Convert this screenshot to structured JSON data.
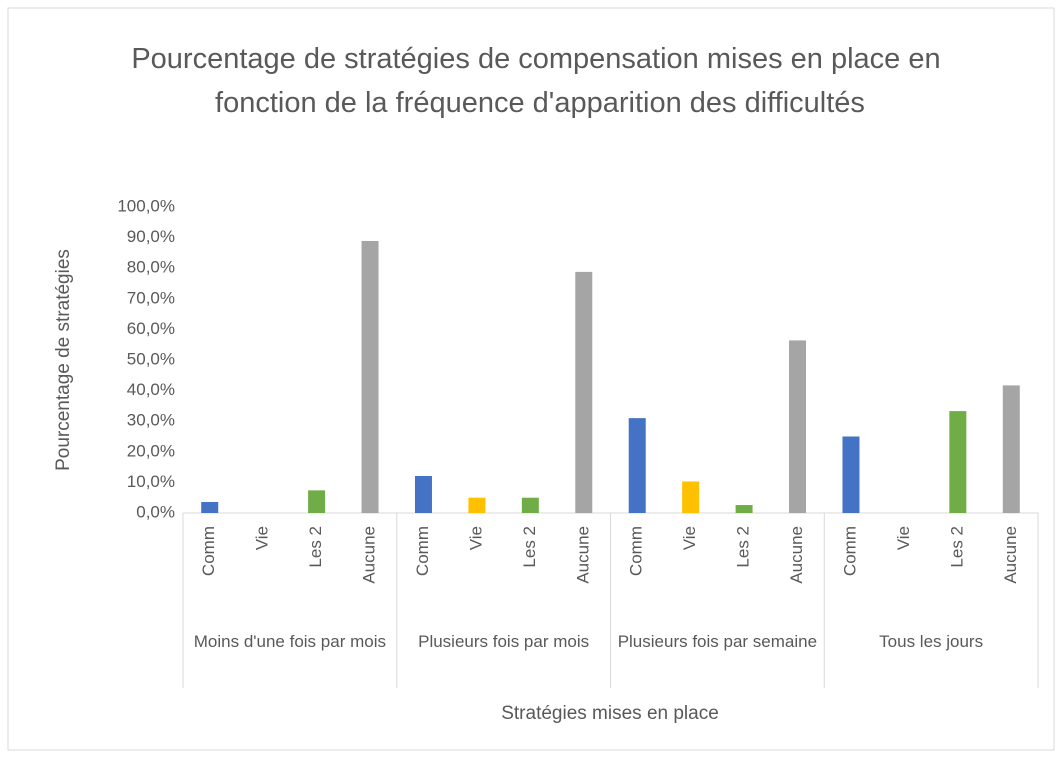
{
  "chart_data": {
    "type": "bar",
    "title": "Pourcentage de stratégies de compensation mises en place en fonction de la fréquence d'apparition des difficultés",
    "ylabel": "Pourcentage de stratégies",
    "xlabel": "Stratégies mises en place",
    "categories": [
      "Moins d'une fois par mois",
      "Plusieurs fois par mois",
      "Plusieurs fois par semaine",
      "Tous les jours"
    ],
    "series": [
      {
        "name": "Comm",
        "color": "#4472c4",
        "values": [
          3.6,
          12.1,
          31.0,
          25.0
        ]
      },
      {
        "name": "Vie",
        "color": "#ffc000",
        "values": [
          0,
          5.0,
          10.3,
          0
        ]
      },
      {
        "name": "Les 2",
        "color": "#70ad47",
        "values": [
          7.4,
          5.0,
          2.6,
          33.3
        ]
      },
      {
        "name": "Aucune",
        "color": "#a5a5a5",
        "values": [
          88.9,
          78.8,
          56.4,
          41.7
        ]
      }
    ],
    "ylim": [
      0,
      100
    ],
    "yticks": [
      {
        "value": 0,
        "label": "0,0%"
      },
      {
        "value": 10,
        "label": "10,0%"
      },
      {
        "value": 20,
        "label": "20,0%"
      },
      {
        "value": 30,
        "label": "30,0%"
      },
      {
        "value": 40,
        "label": "40,0%"
      },
      {
        "value": 50,
        "label": "50,0%"
      },
      {
        "value": 60,
        "label": "60,0%"
      },
      {
        "value": 70,
        "label": "70,0%"
      },
      {
        "value": 80,
        "label": "80,0%"
      },
      {
        "value": 90,
        "label": "90,0%"
      },
      {
        "value": 100,
        "label": "100,0%"
      }
    ]
  }
}
